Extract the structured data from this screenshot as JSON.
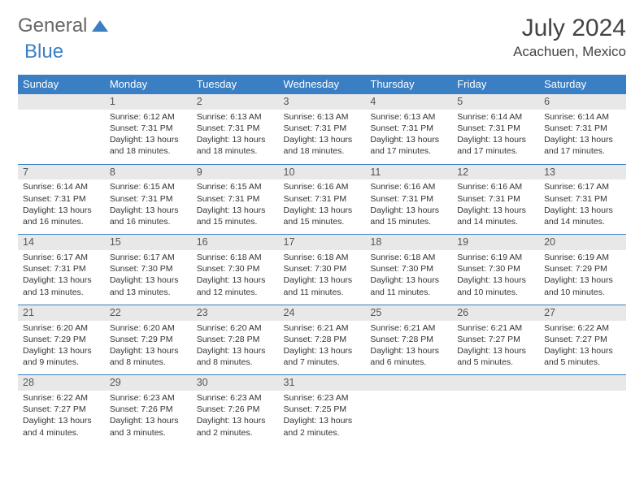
{
  "logo": {
    "part1": "General",
    "part2": "Blue"
  },
  "header": {
    "month": "July 2024",
    "location": "Acachuen, Mexico"
  },
  "styling": {
    "header_bg": "#3a7fc4",
    "header_text": "#ffffff",
    "daynum_bg": "#e8e8e8",
    "row_border": "#3a7fc4",
    "body_font_size": 10.5,
    "page_bg": "#ffffff"
  },
  "weekdays": [
    "Sunday",
    "Monday",
    "Tuesday",
    "Wednesday",
    "Thursday",
    "Friday",
    "Saturday"
  ],
  "weeks": [
    [
      {
        "n": "",
        "sr": "",
        "ss": "",
        "dl": ""
      },
      {
        "n": "1",
        "sr": "Sunrise: 6:12 AM",
        "ss": "Sunset: 7:31 PM",
        "dl": "Daylight: 13 hours and 18 minutes."
      },
      {
        "n": "2",
        "sr": "Sunrise: 6:13 AM",
        "ss": "Sunset: 7:31 PM",
        "dl": "Daylight: 13 hours and 18 minutes."
      },
      {
        "n": "3",
        "sr": "Sunrise: 6:13 AM",
        "ss": "Sunset: 7:31 PM",
        "dl": "Daylight: 13 hours and 18 minutes."
      },
      {
        "n": "4",
        "sr": "Sunrise: 6:13 AM",
        "ss": "Sunset: 7:31 PM",
        "dl": "Daylight: 13 hours and 17 minutes."
      },
      {
        "n": "5",
        "sr": "Sunrise: 6:14 AM",
        "ss": "Sunset: 7:31 PM",
        "dl": "Daylight: 13 hours and 17 minutes."
      },
      {
        "n": "6",
        "sr": "Sunrise: 6:14 AM",
        "ss": "Sunset: 7:31 PM",
        "dl": "Daylight: 13 hours and 17 minutes."
      }
    ],
    [
      {
        "n": "7",
        "sr": "Sunrise: 6:14 AM",
        "ss": "Sunset: 7:31 PM",
        "dl": "Daylight: 13 hours and 16 minutes."
      },
      {
        "n": "8",
        "sr": "Sunrise: 6:15 AM",
        "ss": "Sunset: 7:31 PM",
        "dl": "Daylight: 13 hours and 16 minutes."
      },
      {
        "n": "9",
        "sr": "Sunrise: 6:15 AM",
        "ss": "Sunset: 7:31 PM",
        "dl": "Daylight: 13 hours and 15 minutes."
      },
      {
        "n": "10",
        "sr": "Sunrise: 6:16 AM",
        "ss": "Sunset: 7:31 PM",
        "dl": "Daylight: 13 hours and 15 minutes."
      },
      {
        "n": "11",
        "sr": "Sunrise: 6:16 AM",
        "ss": "Sunset: 7:31 PM",
        "dl": "Daylight: 13 hours and 15 minutes."
      },
      {
        "n": "12",
        "sr": "Sunrise: 6:16 AM",
        "ss": "Sunset: 7:31 PM",
        "dl": "Daylight: 13 hours and 14 minutes."
      },
      {
        "n": "13",
        "sr": "Sunrise: 6:17 AM",
        "ss": "Sunset: 7:31 PM",
        "dl": "Daylight: 13 hours and 14 minutes."
      }
    ],
    [
      {
        "n": "14",
        "sr": "Sunrise: 6:17 AM",
        "ss": "Sunset: 7:31 PM",
        "dl": "Daylight: 13 hours and 13 minutes."
      },
      {
        "n": "15",
        "sr": "Sunrise: 6:17 AM",
        "ss": "Sunset: 7:30 PM",
        "dl": "Daylight: 13 hours and 13 minutes."
      },
      {
        "n": "16",
        "sr": "Sunrise: 6:18 AM",
        "ss": "Sunset: 7:30 PM",
        "dl": "Daylight: 13 hours and 12 minutes."
      },
      {
        "n": "17",
        "sr": "Sunrise: 6:18 AM",
        "ss": "Sunset: 7:30 PM",
        "dl": "Daylight: 13 hours and 11 minutes."
      },
      {
        "n": "18",
        "sr": "Sunrise: 6:18 AM",
        "ss": "Sunset: 7:30 PM",
        "dl": "Daylight: 13 hours and 11 minutes."
      },
      {
        "n": "19",
        "sr": "Sunrise: 6:19 AM",
        "ss": "Sunset: 7:30 PM",
        "dl": "Daylight: 13 hours and 10 minutes."
      },
      {
        "n": "20",
        "sr": "Sunrise: 6:19 AM",
        "ss": "Sunset: 7:29 PM",
        "dl": "Daylight: 13 hours and 10 minutes."
      }
    ],
    [
      {
        "n": "21",
        "sr": "Sunrise: 6:20 AM",
        "ss": "Sunset: 7:29 PM",
        "dl": "Daylight: 13 hours and 9 minutes."
      },
      {
        "n": "22",
        "sr": "Sunrise: 6:20 AM",
        "ss": "Sunset: 7:29 PM",
        "dl": "Daylight: 13 hours and 8 minutes."
      },
      {
        "n": "23",
        "sr": "Sunrise: 6:20 AM",
        "ss": "Sunset: 7:28 PM",
        "dl": "Daylight: 13 hours and 8 minutes."
      },
      {
        "n": "24",
        "sr": "Sunrise: 6:21 AM",
        "ss": "Sunset: 7:28 PM",
        "dl": "Daylight: 13 hours and 7 minutes."
      },
      {
        "n": "25",
        "sr": "Sunrise: 6:21 AM",
        "ss": "Sunset: 7:28 PM",
        "dl": "Daylight: 13 hours and 6 minutes."
      },
      {
        "n": "26",
        "sr": "Sunrise: 6:21 AM",
        "ss": "Sunset: 7:27 PM",
        "dl": "Daylight: 13 hours and 5 minutes."
      },
      {
        "n": "27",
        "sr": "Sunrise: 6:22 AM",
        "ss": "Sunset: 7:27 PM",
        "dl": "Daylight: 13 hours and 5 minutes."
      }
    ],
    [
      {
        "n": "28",
        "sr": "Sunrise: 6:22 AM",
        "ss": "Sunset: 7:27 PM",
        "dl": "Daylight: 13 hours and 4 minutes."
      },
      {
        "n": "29",
        "sr": "Sunrise: 6:23 AM",
        "ss": "Sunset: 7:26 PM",
        "dl": "Daylight: 13 hours and 3 minutes."
      },
      {
        "n": "30",
        "sr": "Sunrise: 6:23 AM",
        "ss": "Sunset: 7:26 PM",
        "dl": "Daylight: 13 hours and 2 minutes."
      },
      {
        "n": "31",
        "sr": "Sunrise: 6:23 AM",
        "ss": "Sunset: 7:25 PM",
        "dl": "Daylight: 13 hours and 2 minutes."
      },
      {
        "n": "",
        "sr": "",
        "ss": "",
        "dl": ""
      },
      {
        "n": "",
        "sr": "",
        "ss": "",
        "dl": ""
      },
      {
        "n": "",
        "sr": "",
        "ss": "",
        "dl": ""
      }
    ]
  ]
}
